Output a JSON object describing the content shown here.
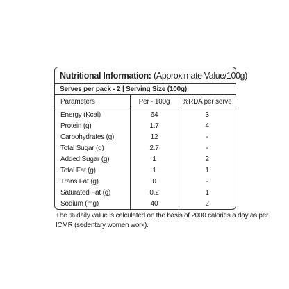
{
  "header": {
    "title": "Nutritional Information:",
    "subtitle": "(Approximate Value/100g)"
  },
  "serving": "Serves per pack - 2 | Serving Size (100g)",
  "table": {
    "columns": [
      "Parameters",
      "Per - 100g",
      "%RDA per serve"
    ],
    "rows": [
      [
        "Energy (Kcal)",
        "64",
        "3"
      ],
      [
        "Protein (g)",
        "1.7",
        "4"
      ],
      [
        "Carbohydrates (g)",
        "12",
        "-"
      ],
      [
        "Total Sugar (g)",
        "2.7",
        "-"
      ],
      [
        "Added Sugar (g)",
        "1",
        "2"
      ],
      [
        "Total Fat (g)",
        "1",
        "1"
      ],
      [
        "Trans Fat (g)",
        "0",
        "-"
      ],
      [
        "Saturated Fat (g)",
        "0.2",
        "1"
      ],
      [
        "Sodium (mg)",
        "40",
        "2"
      ]
    ]
  },
  "footnote": [
    "The % daily value is calculated on the basis of 2000 calories a day as per",
    "ICMR (sedentary women work)."
  ]
}
